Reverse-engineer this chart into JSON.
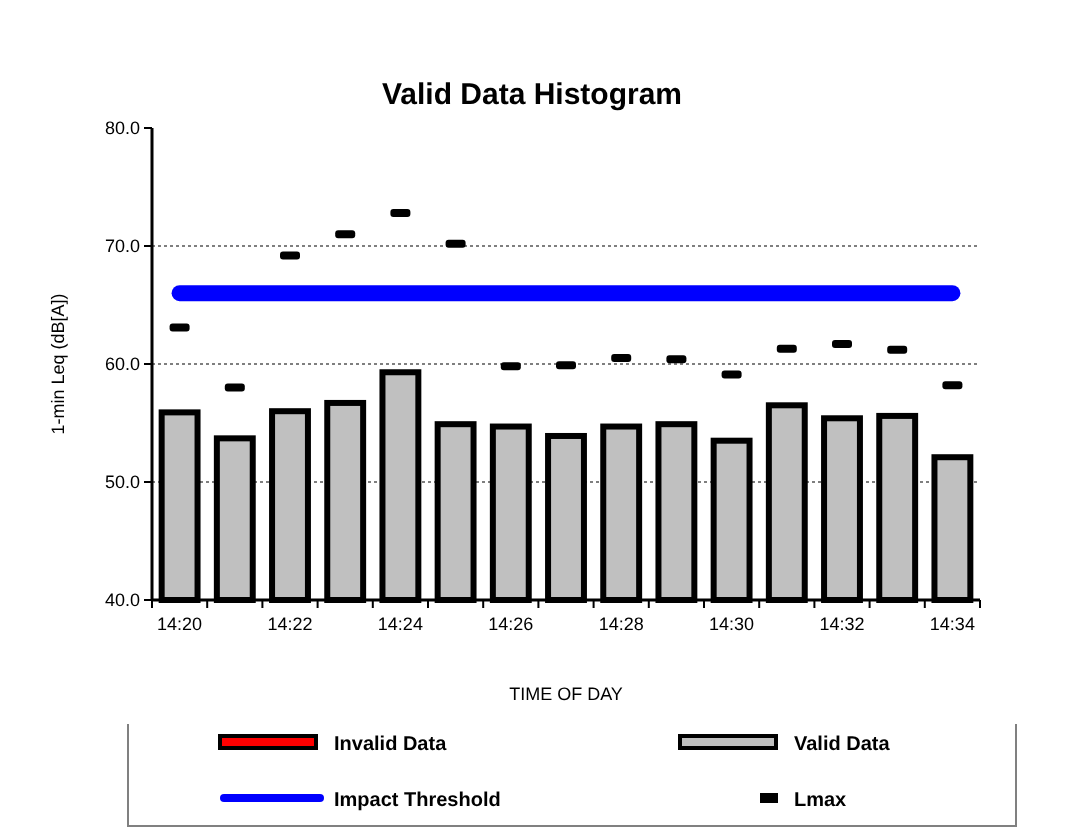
{
  "chart_data": {
    "type": "bar",
    "title": "Valid Data Histogram",
    "xlabel": "TIME OF DAY",
    "ylabel": "1-min Leq (dB[A])",
    "categories": [
      "14:20",
      null,
      "14:22",
      null,
      "14:24",
      null,
      "14:26",
      null,
      "14:28",
      null,
      "14:30",
      null,
      "14:32",
      null,
      "14:34"
    ],
    "series": [
      {
        "name": "Invalid Data",
        "color": "#ff0000",
        "values": [
          null,
          null,
          null,
          null,
          null,
          null,
          null,
          null,
          null,
          null,
          null,
          null,
          null,
          null,
          null
        ]
      },
      {
        "name": "Valid Data",
        "color": "#c0c0c0",
        "values": [
          55.9,
          53.7,
          56.0,
          56.7,
          59.3,
          54.9,
          54.7,
          53.9,
          54.7,
          54.9,
          53.5,
          56.5,
          55.4,
          55.6,
          52.1
        ]
      },
      {
        "name": "Lmax",
        "type": "scatter",
        "color": "#000000",
        "values": [
          63.1,
          58.0,
          69.2,
          71.0,
          72.8,
          70.2,
          59.8,
          59.9,
          60.5,
          60.4,
          59.1,
          61.3,
          61.7,
          61.2,
          58.2
        ]
      }
    ],
    "ref_lines": [
      {
        "axis": "y",
        "value": 66,
        "label": "Impact Threshold",
        "color": "#0000ff"
      }
    ],
    "ylim": [
      40,
      80
    ],
    "yticks": [
      {
        "value": 40,
        "label": "40.0"
      },
      {
        "value": 50,
        "label": "50.0"
      },
      {
        "value": 60,
        "label": "60.0"
      },
      {
        "value": 70,
        "label": "70.0"
      },
      {
        "value": 80,
        "label": "80.0"
      }
    ],
    "grid": "y",
    "legend": "bottom"
  }
}
